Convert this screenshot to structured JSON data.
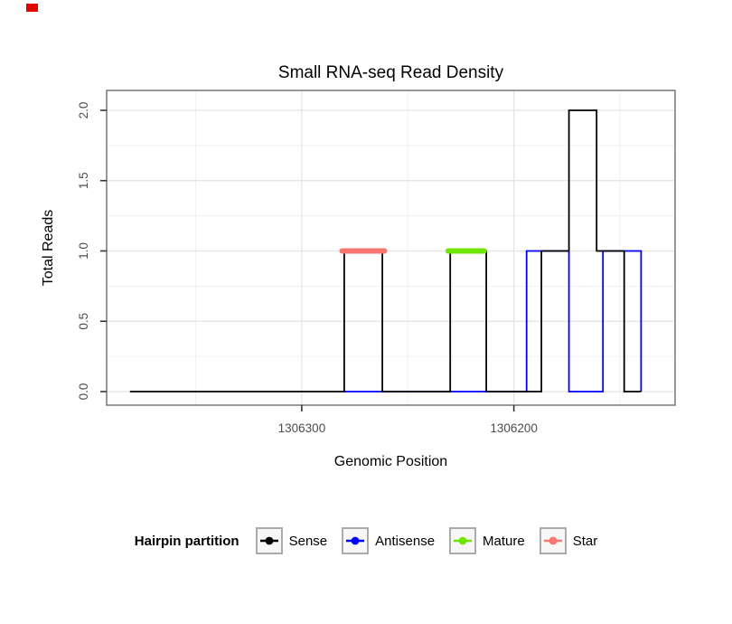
{
  "artifact": {
    "color": "#E60000"
  },
  "chart_data": {
    "type": "line",
    "title": "Small RNA-seq Read Density",
    "xlabel": "Genomic Position",
    "ylabel": "Total Reads",
    "x_axis": {
      "reversed": true,
      "lim": [
        1306392,
        1306124
      ],
      "major_ticks": [
        {
          "pos": 1306300,
          "label": "1306300"
        },
        {
          "pos": 1306200,
          "label": "1306200"
        }
      ],
      "minor_gridlines": [
        1306350,
        1306250,
        1306150
      ]
    },
    "y_axis": {
      "lim": [
        0,
        2
      ],
      "major_ticks": [
        {
          "v": 0,
          "label": "0.0"
        },
        {
          "v": 0.5,
          "label": "0.5"
        },
        {
          "v": 1,
          "label": "1.0"
        },
        {
          "v": 1.5,
          "label": "1.5"
        },
        {
          "v": 2,
          "label": "2.0"
        }
      ],
      "minor_gridlines": [
        0.25,
        0.75,
        1.25,
        1.75
      ]
    },
    "series": [
      {
        "name": "Antisense",
        "color": "#0000FF",
        "width": 1.8,
        "linecap": "butt",
        "points": [
          [
            1306280,
            0
          ],
          [
            1306194,
            0
          ],
          [
            1306194,
            1
          ],
          [
            1306174,
            1
          ],
          [
            1306174,
            0
          ],
          [
            1306158,
            0
          ],
          [
            1306158,
            1
          ],
          [
            1306140,
            1
          ],
          [
            1306140,
            0
          ]
        ]
      },
      {
        "name": "Sense",
        "color": "#000000",
        "width": 1.8,
        "linecap": "butt",
        "points": [
          [
            1306381,
            0
          ],
          [
            1306280,
            0
          ],
          [
            1306280,
            1
          ],
          [
            1306262,
            1
          ],
          [
            1306262,
            0
          ],
          [
            1306230,
            0
          ],
          [
            1306230,
            1
          ],
          [
            1306213,
            1
          ],
          [
            1306213,
            0
          ],
          [
            1306187,
            0
          ],
          [
            1306187,
            1
          ],
          [
            1306174,
            1
          ],
          [
            1306174,
            2
          ],
          [
            1306161,
            2
          ],
          [
            1306161,
            1
          ],
          [
            1306148,
            1
          ],
          [
            1306148,
            0
          ],
          [
            1306140,
            0
          ]
        ]
      },
      {
        "name": "Mature",
        "color": "#6FE600",
        "width": 6,
        "linecap": "round",
        "points": [
          [
            1306231,
            1
          ],
          [
            1306214,
            1
          ]
        ]
      },
      {
        "name": "Star",
        "color": "#F8766D",
        "width": 6,
        "linecap": "round",
        "points": [
          [
            1306281,
            1
          ],
          [
            1306261,
            1
          ]
        ]
      }
    ],
    "legend": {
      "title": "Hairpin partition",
      "position": "bottom",
      "entries": [
        {
          "label": "Sense",
          "color": "#000000"
        },
        {
          "label": "Antisense",
          "color": "#0000FF"
        },
        {
          "label": "Mature",
          "color": "#6FE600"
        },
        {
          "label": "Star",
          "color": "#F8766D"
        }
      ]
    }
  }
}
